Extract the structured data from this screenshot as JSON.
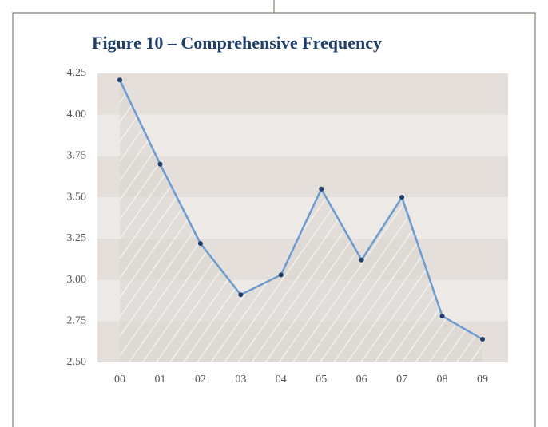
{
  "chart_data": {
    "type": "line",
    "title": "Figure 10 – Comprehensive Frequency",
    "categories": [
      "00",
      "01",
      "02",
      "03",
      "04",
      "05",
      "06",
      "07",
      "08",
      "09"
    ],
    "values": [
      4.21,
      3.7,
      3.22,
      2.91,
      3.03,
      3.55,
      3.12,
      3.5,
      2.78,
      2.64
    ],
    "color": "#6b9bd1",
    "marker_color": "#1f3e6b",
    "ylim": [
      2.5,
      4.25
    ],
    "yticks": [
      {
        "value": 2.5,
        "label": "2.50"
      },
      {
        "value": 2.75,
        "label": "2.75"
      },
      {
        "value": 3,
        "label": "3.00"
      },
      {
        "value": 3.25,
        "label": "3.25"
      },
      {
        "value": 3.5,
        "label": "3.50"
      },
      {
        "value": 3.75,
        "label": "3.75"
      },
      {
        "value": 4,
        "label": "4.00"
      },
      {
        "value": 4.25,
        "label": "4.25"
      }
    ],
    "grid": true
  }
}
